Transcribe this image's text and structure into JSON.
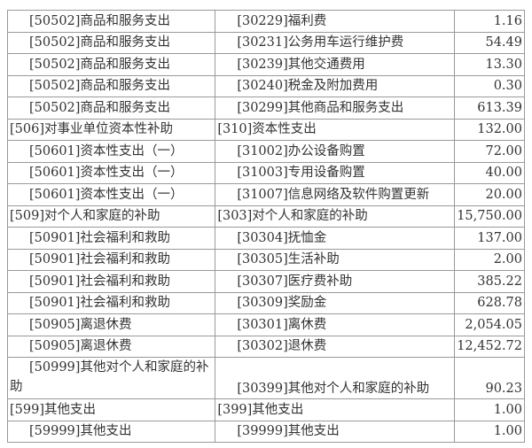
{
  "rows": [
    {
      "econ_func": "[50502]商品和服务支出",
      "econ_dept": "[30229]福利费",
      "amount": "1.16",
      "indent": true
    },
    {
      "econ_func": "[50502]商品和服务支出",
      "econ_dept": "[30231]公务用车运行维护费",
      "amount": "54.49",
      "indent": true
    },
    {
      "econ_func": "[50502]商品和服务支出",
      "econ_dept": "[30239]其他交通费用",
      "amount": "13.30",
      "indent": true
    },
    {
      "econ_func": "[50502]商品和服务支出",
      "econ_dept": "[30240]税金及附加费用",
      "amount": "0.30",
      "indent": true
    },
    {
      "econ_func": "[50502]商品和服务支出",
      "econ_dept": "[30299]其他商品和服务支出",
      "amount": "613.39",
      "indent": true
    },
    {
      "econ_func": "[506]对事业单位资本性补助",
      "econ_dept": "[310]资本性支出",
      "amount": "132.00",
      "indent": false
    },
    {
      "econ_func": "[50601]资本性支出（一）",
      "econ_dept": "[31002]办公设备购置",
      "amount": "72.00",
      "indent": true
    },
    {
      "econ_func": "[50601]资本性支出（一）",
      "econ_dept": "[31003]专用设备购置",
      "amount": "40.00",
      "indent": true
    },
    {
      "econ_func": "[50601]资本性支出（一）",
      "econ_dept": "[31007]信息网络及软件购置更新",
      "amount": "20.00",
      "indent": true
    },
    {
      "econ_func": "[509]对个人和家庭的补助",
      "econ_dept": "[303]对个人和家庭的补助",
      "amount": "15,750.00",
      "indent": false
    },
    {
      "econ_func": "[50901]社会福利和救助",
      "econ_dept": "[30304]抚恤金",
      "amount": "137.00",
      "indent": true
    },
    {
      "econ_func": "[50901]社会福利和救助",
      "econ_dept": "[30305]生活补助",
      "amount": "2.00",
      "indent": true
    },
    {
      "econ_func": "[50901]社会福利和救助",
      "econ_dept": "[30307]医疗费补助",
      "amount": "385.22",
      "indent": true
    },
    {
      "econ_func": "[50901]社会福利和救助",
      "econ_dept": "[30309]奖励金",
      "amount": "628.78",
      "indent": true
    },
    {
      "econ_func": "[50905]离退休费",
      "econ_dept": "[30301]离休费",
      "amount": "2,054.05",
      "indent": true
    },
    {
      "econ_func": "[50905]离退休费",
      "econ_dept": "[30302]退休费",
      "amount": "12,452.72",
      "indent": true
    },
    {
      "econ_func": "[50999]其他对个人和家庭的补助",
      "econ_dept": "[30399]其他对个人和家庭的补助",
      "amount": "90.23",
      "indent": true,
      "wrap": true
    },
    {
      "econ_func": "[599]其他支出",
      "econ_dept": "[399]其他支出",
      "amount": "1.00",
      "indent": false
    },
    {
      "econ_func": "[59999]其他支出",
      "econ_dept": "[39999]其他支出",
      "amount": "1.00",
      "indent": true
    }
  ]
}
